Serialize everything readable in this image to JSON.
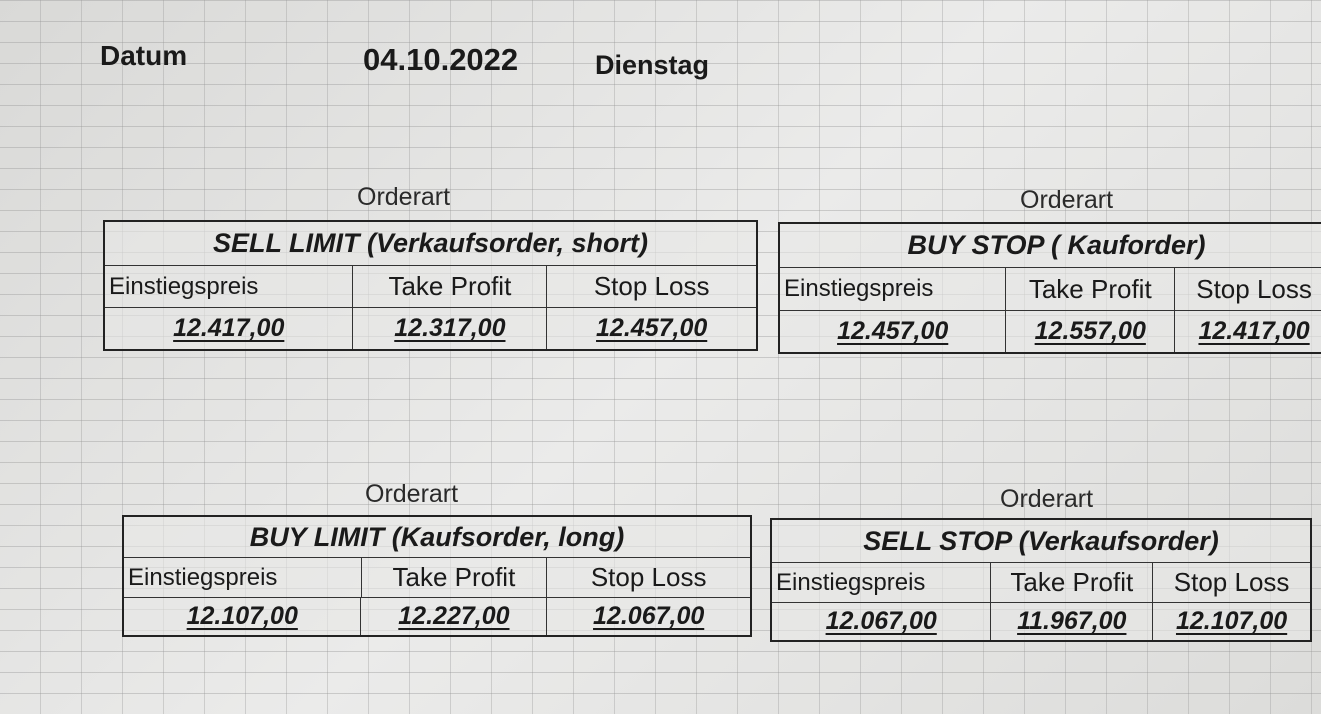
{
  "header": {
    "label": "Datum",
    "date": "04.10.2022",
    "weekday": "Dienstag"
  },
  "blocks": [
    {
      "caption": "Orderart",
      "title": "SELL LIMIT (Verkaufsorder, short)",
      "columns": [
        "Einstiegspreis",
        "Take Profit",
        "Stop Loss"
      ],
      "values": [
        "12.417,00",
        "12.317,00",
        "12.457,00"
      ]
    },
    {
      "caption": "Orderart",
      "title": "BUY STOP ( Kauforder)",
      "columns": [
        "Einstiegspreis",
        "Take Profit",
        "Stop Loss"
      ],
      "values": [
        "12.457,00",
        "12.557,00",
        "12.417,00"
      ]
    },
    {
      "caption": "Orderart",
      "title": "BUY LIMIT (Kaufsorder, long)",
      "columns": [
        "Einstiegspreis",
        "Take Profit",
        "Stop Loss"
      ],
      "values": [
        "12.107,00",
        "12.227,00",
        "12.067,00"
      ]
    },
    {
      "caption": "Orderart",
      "title": "SELL STOP (Verkaufsorder)",
      "columns": [
        "Einstiegspreis",
        "Take Profit",
        "Stop Loss"
      ],
      "values": [
        "12.067,00",
        "11.967,00",
        "12.107,00"
      ]
    }
  ]
}
